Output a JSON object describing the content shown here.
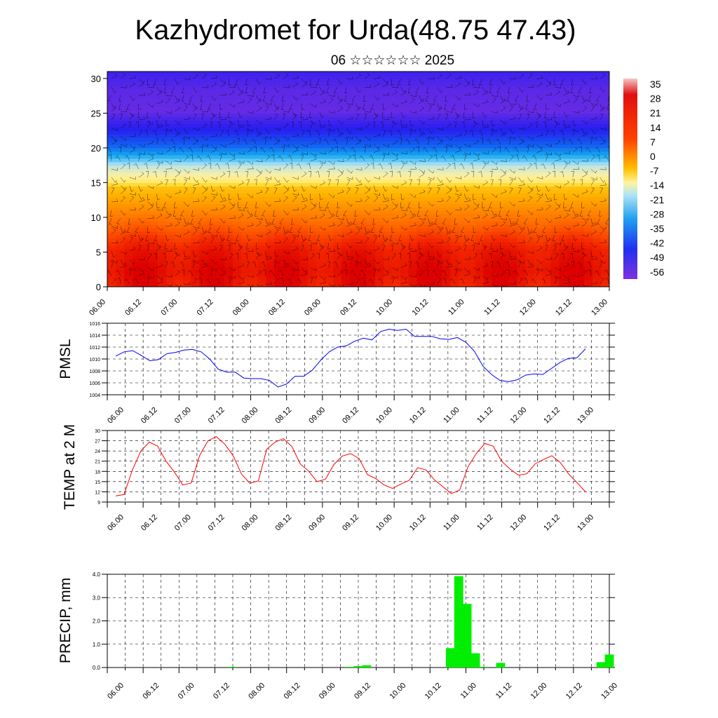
{
  "title": "Kazhydromet for Urda(48.75 47.43)",
  "subtitle": "06 ☆☆☆☆☆☆ 2025",
  "time_labels": [
    "06.00",
    "06.12",
    "07.00",
    "07.12",
    "08.00",
    "08.12",
    "09.00",
    "09.12",
    "10.00",
    "10.12",
    "11.00",
    "11.12",
    "12.00",
    "12.12",
    "13.00"
  ],
  "colors": {
    "pmsl": "#0000ff",
    "temp": "#ff0000",
    "precip": "#00ee00",
    "frame": "#000000"
  },
  "chart_data": [
    {
      "type": "heatmap",
      "name": "cross-section",
      "ylim": [
        0,
        31
      ],
      "yticks": [
        0,
        5,
        10,
        15,
        20,
        25,
        30
      ],
      "colorbar_labels": [
        "35",
        "28",
        "21",
        "14",
        "7",
        "0",
        "-7",
        "-14",
        "-21",
        "-28",
        "-35",
        "-42",
        "-49",
        "-56"
      ],
      "levels": [
        0,
        2,
        5,
        8,
        11,
        14,
        15,
        17,
        20,
        22,
        25,
        28,
        31
      ],
      "temps": [
        26,
        28,
        25,
        17,
        10,
        3,
        -7,
        -15,
        -38,
        -48,
        -57,
        -56,
        -52
      ]
    },
    {
      "type": "line",
      "ylabel": "PMSL",
      "ylim": [
        1004,
        1016
      ],
      "yticks": [
        1004,
        1006,
        1008,
        1010,
        1012,
        1014,
        1016
      ],
      "series": [
        {
          "values": [
            1010.5,
            1011.2,
            1011.4,
            1010.6,
            1009.7,
            1009.9,
            1010.9,
            1011.1,
            1011.5,
            1011.6,
            1011.2,
            1010,
            1008.3,
            1007.8,
            1007.8,
            1006.8,
            1006.7,
            1006.7,
            1006.4,
            1005.3,
            1005.8,
            1007.1,
            1007.1,
            1008.1,
            1009.8,
            1011.2,
            1012,
            1012.2,
            1013,
            1013.5,
            1013.2,
            1014.6,
            1015,
            1014.8,
            1015,
            1013.8,
            1013.8,
            1013.8,
            1013.4,
            1013.3,
            1013.6,
            1012.8,
            1011.3,
            1008.8,
            1007.4,
            1006.4,
            1006.2,
            1006.5,
            1007.3,
            1007.5,
            1007.4,
            1008.4,
            1009.4,
            1010.1,
            1010.2,
            1011.7
          ]
        }
      ]
    },
    {
      "type": "line",
      "ylabel": "TEMP at 2 M",
      "ylim": [
        9,
        30
      ],
      "yticks": [
        9,
        12,
        15,
        18,
        21,
        24,
        27,
        30
      ],
      "series": [
        {
          "values": [
            10.8,
            11.2,
            18.5,
            24,
            26.6,
            25.4,
            21,
            17.8,
            14,
            14.6,
            22.6,
            27,
            28.2,
            26,
            22.6,
            17.2,
            14.5,
            15.2,
            24.5,
            26.6,
            27.6,
            25.3,
            20.2,
            18.1,
            15,
            15.7,
            20,
            22.5,
            23.2,
            21.8,
            17.1,
            15.9,
            14,
            13,
            14.3,
            15.4,
            19.1,
            18.4,
            15.5,
            13.5,
            11.5,
            12.5,
            19.4,
            23.3,
            26.2,
            25.4,
            21,
            18.7,
            16.9,
            17.3,
            20.2,
            21.5,
            22.6,
            20.6,
            17.2,
            14.7,
            12
          ]
        }
      ]
    },
    {
      "type": "bar",
      "ylabel": "PRECIP, mm",
      "ylim": [
        0,
        4
      ],
      "ytick_labels": [
        "0.0",
        "1.0",
        "2.0",
        "3.0",
        "4.0"
      ],
      "bars": [
        {
          "x": 3.25,
          "value": 0.03
        },
        {
          "x": 6.75,
          "value": 0.03
        },
        {
          "x": 7,
          "value": 0.06
        },
        {
          "x": 7.25,
          "value": 0.1
        },
        {
          "x": 9.75,
          "value": 0.83
        },
        {
          "x": 10,
          "value": 3.92
        },
        {
          "x": 10.25,
          "value": 2.73
        },
        {
          "x": 10.5,
          "value": 0.61
        },
        {
          "x": 10.75,
          "value": 0.03
        },
        {
          "x": 11.25,
          "value": 0.2
        },
        {
          "x": 14.25,
          "value": 0.23
        },
        {
          "x": 14.5,
          "value": 0.56
        }
      ]
    }
  ]
}
